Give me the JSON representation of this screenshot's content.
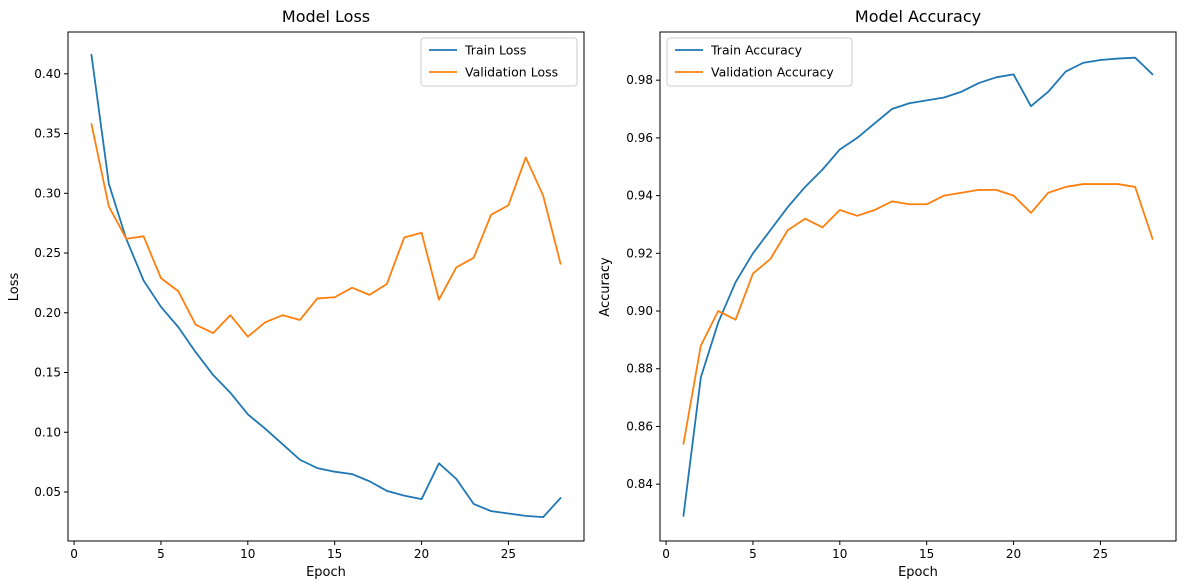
{
  "chart_data": [
    {
      "type": "line",
      "title": "Model Loss",
      "xlabel": "Epoch",
      "ylabel": "Loss",
      "xlim": [
        -0.35,
        29.35
      ],
      "ylim": [
        0.009,
        0.435
      ],
      "xticks": [
        0,
        5,
        10,
        15,
        20,
        25
      ],
      "yticks": [
        0.05,
        0.1,
        0.15,
        0.2,
        0.25,
        0.3,
        0.35,
        0.4
      ],
      "ytick_labels": [
        "0.05",
        "0.10",
        "0.15",
        "0.20",
        "0.25",
        "0.30",
        "0.35",
        "0.40"
      ],
      "legend_position": "top-right",
      "grid": false,
      "x": [
        1,
        2,
        3,
        4,
        5,
        6,
        7,
        8,
        9,
        10,
        11,
        12,
        13,
        14,
        15,
        16,
        17,
        18,
        19,
        20,
        21,
        22,
        23,
        24,
        25,
        26,
        27,
        28
      ],
      "series": [
        {
          "name": "Train Loss",
          "color": "#1f77b4",
          "values": [
            0.416,
            0.308,
            0.262,
            0.227,
            0.205,
            0.188,
            0.167,
            0.148,
            0.133,
            0.115,
            0.103,
            0.09,
            0.077,
            0.07,
            0.067,
            0.065,
            0.059,
            0.051,
            0.047,
            0.044,
            0.074,
            0.061,
            0.04,
            0.034,
            0.032,
            0.03,
            0.029,
            0.045
          ]
        },
        {
          "name": "Validation Loss",
          "color": "#ff7f0e",
          "values": [
            0.358,
            0.289,
            0.262,
            0.264,
            0.229,
            0.218,
            0.19,
            0.183,
            0.198,
            0.18,
            0.192,
            0.198,
            0.194,
            0.212,
            0.213,
            0.221,
            0.215,
            0.224,
            0.263,
            0.267,
            0.211,
            0.238,
            0.246,
            0.282,
            0.29,
            0.33,
            0.298,
            0.241
          ]
        }
      ]
    },
    {
      "type": "line",
      "title": "Model Accuracy",
      "xlabel": "Epoch",
      "ylabel": "Accuracy",
      "xlim": [
        -0.35,
        29.35
      ],
      "ylim": [
        0.8203,
        0.9967
      ],
      "xticks": [
        0,
        5,
        10,
        15,
        20,
        25
      ],
      "yticks": [
        0.84,
        0.86,
        0.88,
        0.9,
        0.92,
        0.94,
        0.96,
        0.98
      ],
      "ytick_labels": [
        "0.84",
        "0.86",
        "0.88",
        "0.90",
        "0.92",
        "0.94",
        "0.96",
        "0.98"
      ],
      "legend_position": "top-left",
      "grid": false,
      "x": [
        1,
        2,
        3,
        4,
        5,
        6,
        7,
        8,
        9,
        10,
        11,
        12,
        13,
        14,
        15,
        16,
        17,
        18,
        19,
        20,
        21,
        22,
        23,
        24,
        25,
        26,
        27,
        28
      ],
      "series": [
        {
          "name": "Train Accuracy",
          "color": "#1f77b4",
          "values": [
            0.829,
            0.877,
            0.896,
            0.91,
            0.92,
            0.928,
            0.936,
            0.943,
            0.949,
            0.956,
            0.96,
            0.965,
            0.97,
            0.972,
            0.973,
            0.974,
            0.976,
            0.979,
            0.981,
            0.982,
            0.971,
            0.976,
            0.983,
            0.986,
            0.987,
            0.9875,
            0.9878,
            0.982
          ]
        },
        {
          "name": "Validation Accuracy",
          "color": "#ff7f0e",
          "values": [
            0.854,
            0.888,
            0.9,
            0.897,
            0.913,
            0.918,
            0.928,
            0.932,
            0.929,
            0.935,
            0.933,
            0.935,
            0.938,
            0.937,
            0.937,
            0.94,
            0.941,
            0.942,
            0.942,
            0.94,
            0.934,
            0.941,
            0.943,
            0.944,
            0.944,
            0.944,
            0.943,
            0.925
          ]
        }
      ]
    }
  ]
}
